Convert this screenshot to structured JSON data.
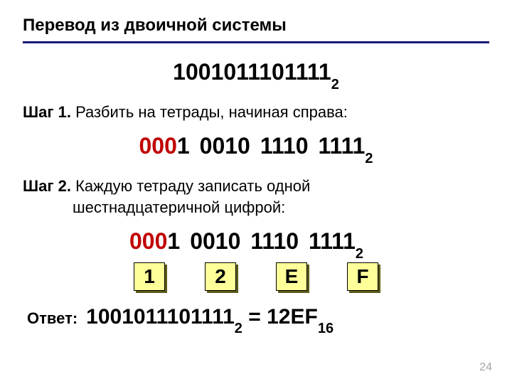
{
  "title": "Перевод из двоичной системы",
  "main_binary": "1001011101111",
  "main_base": "2",
  "step1_label": "Шаг 1.",
  "step1_text": " Разбить на тетрады, начиная справа:",
  "tetrads": {
    "g1_red": "000",
    "g1_black": "1",
    "g2": "0010",
    "g3": "1110",
    "g4": "1111",
    "base": "2"
  },
  "step2_label": "Шаг 2.",
  "step2_text_l1": " Каждую тетраду записать одной",
  "step2_text_l2": "шестнадцатеричной цифрой:",
  "hex_boxes": [
    "1",
    "2",
    "E",
    "F"
  ],
  "answer_label": "Ответ:",
  "answer_bin": "1001011101111",
  "answer_bin_base": "2",
  "answer_eq": " = ",
  "answer_hex": "12EF",
  "answer_hex_base": "16",
  "page_number": "24",
  "colors": {
    "underline": "#1a1a7a",
    "red": "#c00000",
    "box_bg": "#ffff99",
    "box_shadow": "#5b5b1a",
    "pagenum": "#a6a6a6"
  }
}
